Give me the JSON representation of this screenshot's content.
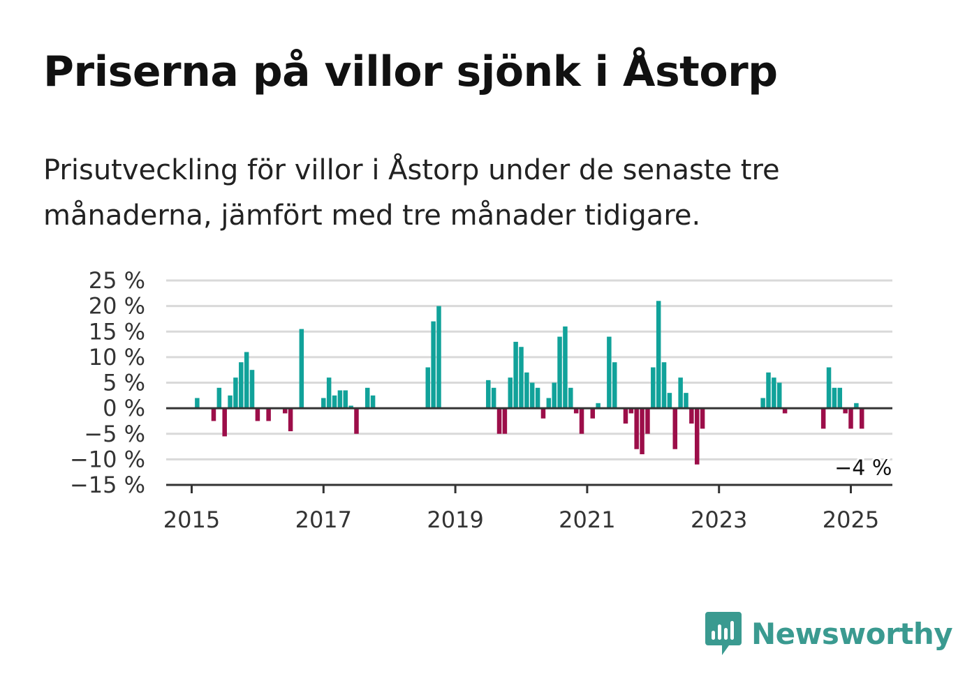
{
  "title": "Priserna på villor sjönk i Åstorp",
  "subtitle": "Prisutveckling för villor i Åstorp under de senaste tre månaderna, jämfört med tre månader tidigare.",
  "brand": {
    "name": "Newsworthy",
    "icon": "newsworthy-logo-icon",
    "color": "#3a9a90"
  },
  "colors": {
    "positive": "#11a29a",
    "negative": "#9c0e49",
    "grid": "#d9d9d9",
    "axis": "#333333"
  },
  "chart_data": {
    "type": "bar",
    "title": "Priserna på villor sjönk i Åstorp",
    "xlabel": "",
    "ylabel": "",
    "ylim": [
      -15,
      25
    ],
    "yticks": [
      25,
      20,
      15,
      10,
      5,
      0,
      -5,
      -10,
      -15
    ],
    "ytick_labels": [
      "25 %",
      "20 %",
      "15 %",
      "10 %",
      "5 %",
      "0 %",
      "−5 %",
      "−10 %",
      "−15 %"
    ],
    "xticks": [
      "2015",
      "2017",
      "2019",
      "2021",
      "2023",
      "2025"
    ],
    "grid": true,
    "start_month": "2015-01",
    "categories": [
      "2015-01",
      "2015-02",
      "2015-03",
      "2015-04",
      "2015-05",
      "2015-06",
      "2015-07",
      "2015-08",
      "2015-09",
      "2015-10",
      "2015-11",
      "2015-12",
      "2016-01",
      "2016-02",
      "2016-03",
      "2016-04",
      "2016-05",
      "2016-06",
      "2016-07",
      "2016-08",
      "2016-09",
      "2016-10",
      "2016-11",
      "2016-12",
      "2017-01",
      "2017-02",
      "2017-03",
      "2017-04",
      "2017-05",
      "2017-06",
      "2017-07",
      "2017-08",
      "2017-09",
      "2017-10",
      "2017-11",
      "2017-12",
      "2018-01",
      "2018-02",
      "2018-03",
      "2018-04",
      "2018-05",
      "2018-06",
      "2018-07",
      "2018-08",
      "2018-09",
      "2018-10",
      "2018-11",
      "2018-12",
      "2019-01",
      "2019-02",
      "2019-03",
      "2019-04",
      "2019-05",
      "2019-06",
      "2019-07",
      "2019-08",
      "2019-09",
      "2019-10",
      "2019-11",
      "2019-12",
      "2020-01",
      "2020-02",
      "2020-03",
      "2020-04",
      "2020-05",
      "2020-06",
      "2020-07",
      "2020-08",
      "2020-09",
      "2020-10",
      "2020-11",
      "2020-12",
      "2021-01",
      "2021-02",
      "2021-03",
      "2021-04",
      "2021-05",
      "2021-06",
      "2021-07",
      "2021-08",
      "2021-09",
      "2021-10",
      "2021-11",
      "2021-12",
      "2022-01",
      "2022-02",
      "2022-03",
      "2022-04",
      "2022-05",
      "2022-06",
      "2022-07",
      "2022-08",
      "2022-09",
      "2022-10",
      "2022-11",
      "2022-12",
      "2023-01",
      "2023-02",
      "2023-03",
      "2023-04",
      "2023-05",
      "2023-06",
      "2023-07",
      "2023-08",
      "2023-09",
      "2023-10",
      "2023-11",
      "2023-12",
      "2024-01",
      "2024-02",
      "2024-03",
      "2024-04",
      "2024-05",
      "2024-06",
      "2024-07",
      "2024-08",
      "2024-09",
      "2024-10",
      "2024-11",
      "2024-12",
      "2025-01",
      "2025-02",
      "2025-03",
      "2025-04",
      "2025-05",
      "2025-06"
    ],
    "values": [
      null,
      2,
      null,
      null,
      -2.5,
      4,
      -5.5,
      2.5,
      6,
      9,
      11,
      7.5,
      -2.5,
      null,
      -2.5,
      null,
      null,
      -1,
      -4.5,
      null,
      15.5,
      null,
      null,
      null,
      2,
      6,
      2.5,
      3.5,
      3.5,
      0.5,
      -5,
      null,
      4,
      2.5,
      null,
      null,
      null,
      null,
      null,
      null,
      null,
      null,
      null,
      8,
      17,
      20,
      null,
      null,
      null,
      null,
      null,
      null,
      null,
      null,
      5.5,
      4,
      -5,
      -5,
      6,
      13,
      12,
      7,
      5,
      4,
      -2,
      2,
      5,
      14,
      16,
      4,
      -1,
      -5,
      null,
      -2,
      1,
      null,
      14,
      9,
      null,
      -3,
      -1,
      -8,
      -9,
      -5,
      8,
      21,
      9,
      3,
      -8,
      6,
      3,
      -3,
      -11,
      -4,
      null,
      null,
      null,
      null,
      null,
      null,
      null,
      null,
      null,
      null,
      2,
      7,
      6,
      5,
      -1,
      null,
      null,
      null,
      null,
      null,
      null,
      -4,
      8,
      4,
      4,
      -1,
      -4,
      1,
      -4,
      null,
      null,
      null
    ],
    "annotations": [
      {
        "text": "−4 %",
        "x": "2025-03",
        "y": -4
      }
    ]
  }
}
